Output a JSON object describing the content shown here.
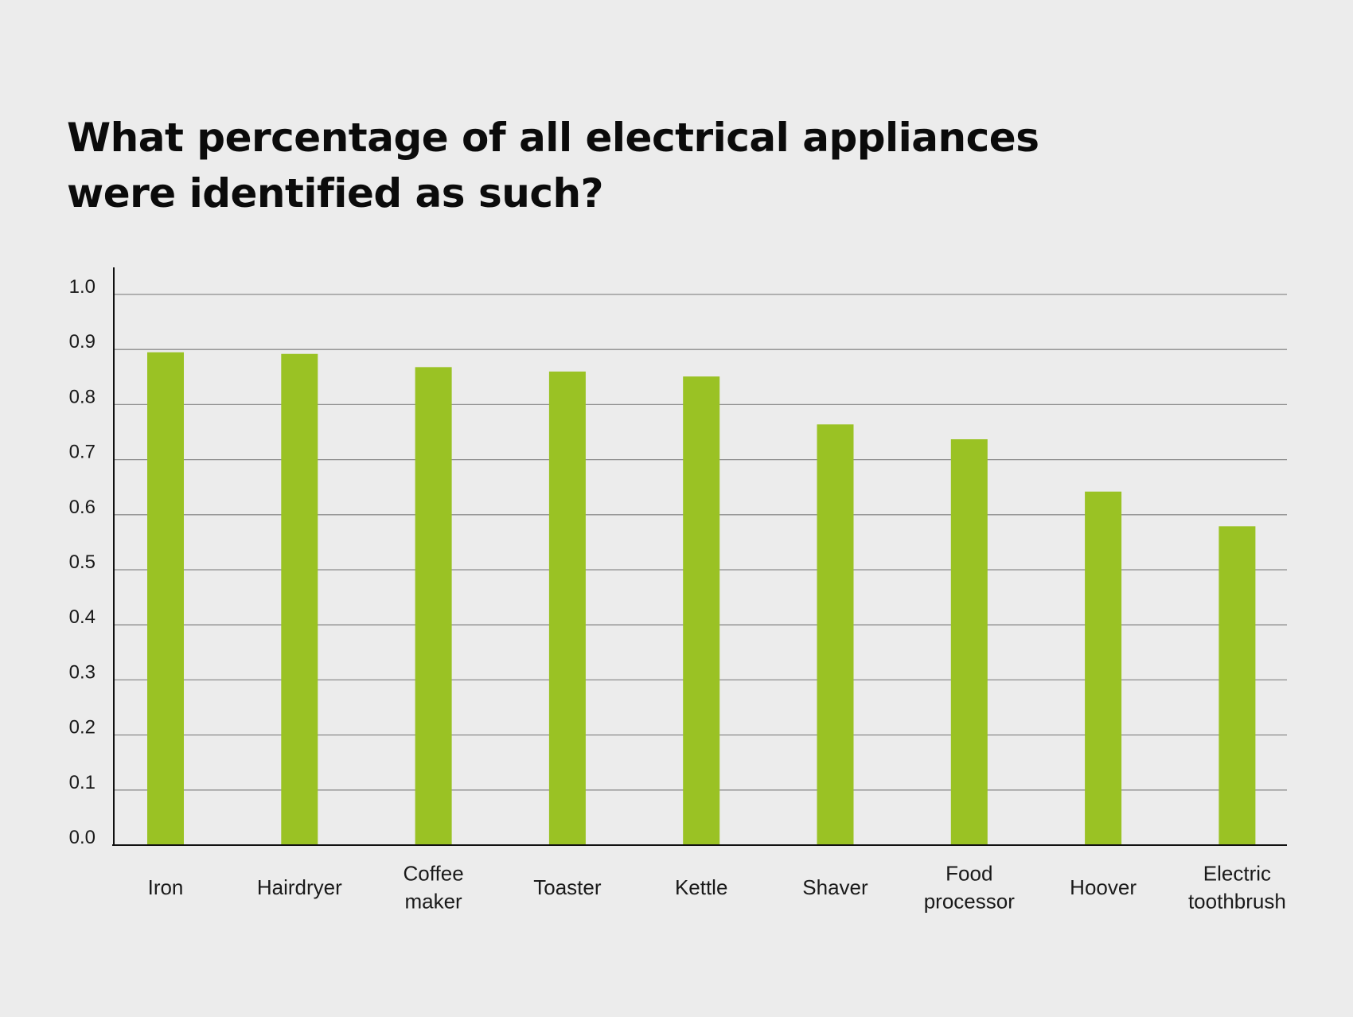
{
  "chart_data": {
    "type": "bar",
    "title": "What percentage of all electrical appliances were identified as such?",
    "xlabel": "",
    "ylabel": "",
    "categories": [
      [
        "Iron"
      ],
      [
        "Hairdryer"
      ],
      [
        "Coffee",
        "maker"
      ],
      [
        "Toaster"
      ],
      [
        "Kettle"
      ],
      [
        "Shaver"
      ],
      [
        "Food",
        "processor"
      ],
      [
        "Hoover"
      ],
      [
        "Electric",
        "toothbrush"
      ]
    ],
    "values": [
      0.895,
      0.892,
      0.868,
      0.86,
      0.851,
      0.764,
      0.737,
      0.642,
      0.579
    ],
    "ylim": [
      0,
      1.0
    ],
    "yticks": [
      "0.0",
      "0.1",
      "0.2",
      "0.3",
      "0.4",
      "0.5",
      "0.6",
      "0.7",
      "0.8",
      "0.9",
      "1.0"
    ],
    "grid": true,
    "legend": "none",
    "bar_color": "#9ac224",
    "grid_color": "#8c8c8c",
    "axis_color": "#111111"
  }
}
